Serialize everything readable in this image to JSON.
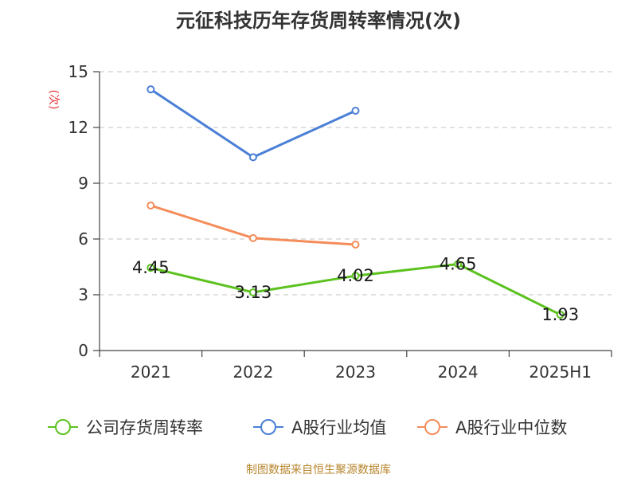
{
  "chart_data": {
    "type": "line",
    "title": "元征科技历年存货周转率情况(次)",
    "ylabel": "(次)",
    "categories": [
      "2021",
      "2022",
      "2023",
      "2024",
      "2025H1"
    ],
    "ylim": [
      0,
      15
    ],
    "yticks": [
      0,
      3,
      6,
      9,
      12,
      15
    ],
    "grid": true,
    "legend_position": "bottom",
    "series": [
      {
        "name": "公司存货周转率",
        "color": "#5cc21f",
        "values": [
          4.45,
          3.13,
          4.02,
          4.65,
          1.93
        ],
        "labels": [
          "4.45",
          "3.13",
          "4.02",
          "4.65",
          "1.93"
        ]
      },
      {
        "name": "A股行业均值",
        "color": "#4a7fd6",
        "values": [
          14.05,
          10.4,
          12.9,
          null,
          null
        ]
      },
      {
        "name": "A股行业中位数",
        "color": "#f48c5a",
        "values": [
          7.8,
          6.05,
          5.7,
          null,
          null
        ]
      }
    ],
    "source": "制图数据来自恒生聚源数据库"
  }
}
